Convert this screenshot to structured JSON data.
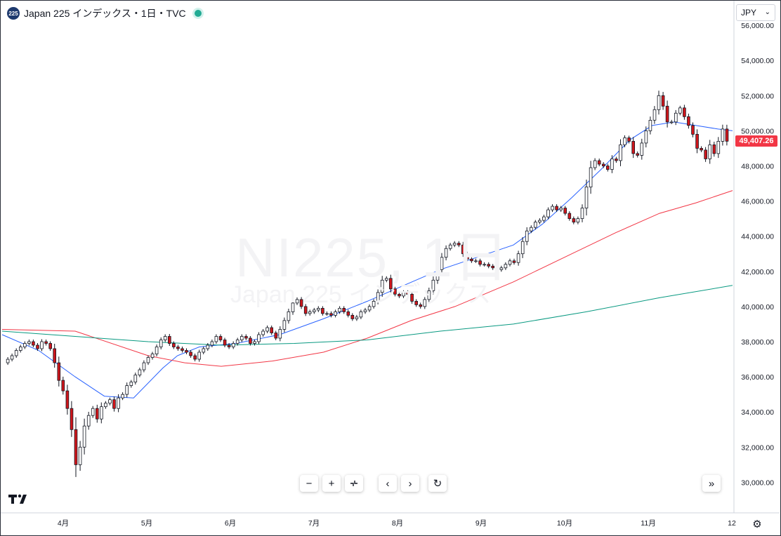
{
  "header": {
    "badge": "225",
    "title": "Japan 225 インデックス・1日・TVC"
  },
  "watermark": {
    "symbol": "NI225, 1日",
    "name": "Japan 225 インデックス"
  },
  "currency": {
    "label": "JPY"
  },
  "last_price": {
    "label": "49,407.26",
    "value": 49407.26
  },
  "toolbar": {
    "zoom_out": "−",
    "zoom_in": "+",
    "scroll_left": "‹",
    "scroll_right": "›",
    "reset": "↻",
    "jump_to_latest": "»"
  },
  "colors": {
    "up": "#ffffff",
    "down": "#d1161b",
    "wick": "#131722",
    "ma_short": "#2962ff",
    "ma_mid": "#f23645",
    "ma_long": "#089981",
    "price_tag": "#f23645",
    "accent": "#22ab94"
  },
  "chart_data": {
    "type": "candlestick",
    "x_ticks": [
      "4月",
      "5月",
      "6月",
      "7月",
      "8月",
      "9月",
      "10月",
      "11月",
      "12"
    ],
    "y_ticks": [
      "30,000.00",
      "32,000.00",
      "34,000.00",
      "36,000.00",
      "38,000.00",
      "40,000.00",
      "42,000.00",
      "44,000.00",
      "46,000.00",
      "48,000.00",
      "50,000.00",
      "52,000.00",
      "54,000.00",
      "56,000.00"
    ],
    "ylim": [
      28300,
      57400
    ],
    "ohlc_close_path": [
      36800,
      37000,
      37200,
      37500,
      37700,
      37900,
      38000,
      37800,
      37600,
      38000,
      37900,
      37600,
      36800,
      35800,
      35200,
      34200,
      33000,
      31000,
      32000,
      33200,
      33800,
      34200,
      33600,
      34300,
      34500,
      34700,
      34200,
      34800,
      35000,
      35500,
      35700,
      36100,
      36400,
      36800,
      37100,
      37300,
      37700,
      38100,
      38300,
      37900,
      37700,
      37600,
      37500,
      37400,
      37200,
      37000,
      37400,
      37600,
      37800,
      38000,
      38300,
      38100,
      37800,
      37700,
      37900,
      38100,
      38300,
      38200,
      37900,
      38000,
      38400,
      38600,
      38800,
      38500,
      38200,
      38700,
      39200,
      39700,
      40200,
      40400,
      40000,
      39600,
      39700,
      39800,
      39900,
      39600,
      39600,
      39500,
      39700,
      39900,
      39700,
      39500,
      39300,
      39400,
      39700,
      39800,
      40000,
      40300,
      40800,
      41500,
      41600,
      41000,
      40700,
      40600,
      40800,
      40700,
      40300,
      40100,
      40000,
      40400,
      40900,
      41500,
      42100,
      42800,
      43300,
      43500,
      43600,
      43500,
      43000,
      42700,
      42600,
      42600,
      42400,
      42400,
      42300,
      42200,
      42100,
      42200,
      42400,
      42600,
      42500,
      43000,
      43700,
      44300,
      44500,
      44800,
      44900,
      45100,
      45500,
      45700,
      45500,
      45600,
      45300,
      45000,
      44800,
      45000,
      45600,
      46800,
      47900,
      48300,
      48100,
      48000,
      47800,
      48400,
      48300,
      49200,
      49600,
      49400,
      48700,
      48600,
      49300,
      50000,
      50600,
      51200,
      52000,
      51400,
      50500,
      50500,
      51000,
      51300,
      50800,
      50300,
      49800,
      49000,
      48900,
      48400,
      49200,
      48700,
      49400,
      50100,
      49407
    ],
    "series": [
      {
        "name": "",
        "color": "#2962ff",
        "x": [
          0,
          0.05,
          0.1,
          0.14,
          0.18,
          0.22,
          0.24,
          0.27,
          0.32,
          0.38,
          0.44,
          0.5,
          0.55,
          0.6,
          0.65,
          0.7,
          0.74,
          0.78,
          0.82,
          0.86,
          0.89,
          0.92,
          0.95,
          0.98,
          1.0
        ],
        "values": [
          38400,
          37500,
          36000,
          34900,
          34800,
          36500,
          37200,
          37700,
          37900,
          38400,
          39300,
          40300,
          41200,
          42100,
          42800,
          43500,
          44700,
          46200,
          47800,
          49500,
          50300,
          50500,
          50300,
          50100,
          50000
        ]
      },
      {
        "name": "",
        "color": "#f23645",
        "x": [
          0,
          0.1,
          0.2,
          0.25,
          0.3,
          0.37,
          0.44,
          0.5,
          0.56,
          0.62,
          0.7,
          0.78,
          0.84,
          0.9,
          0.95,
          1.0
        ],
        "values": [
          38700,
          38600,
          37200,
          36800,
          36600,
          36900,
          37400,
          38200,
          39200,
          40000,
          41400,
          43000,
          44200,
          45300,
          45900,
          46600
        ]
      },
      {
        "name": "",
        "color": "#089981",
        "x": [
          0,
          0.1,
          0.2,
          0.3,
          0.4,
          0.5,
          0.6,
          0.7,
          0.8,
          0.9,
          1.0
        ],
        "values": [
          38600,
          38300,
          38000,
          37800,
          37900,
          38100,
          38600,
          39000,
          39700,
          40500,
          41200
        ]
      }
    ],
    "grid": false,
    "legend": "none"
  }
}
